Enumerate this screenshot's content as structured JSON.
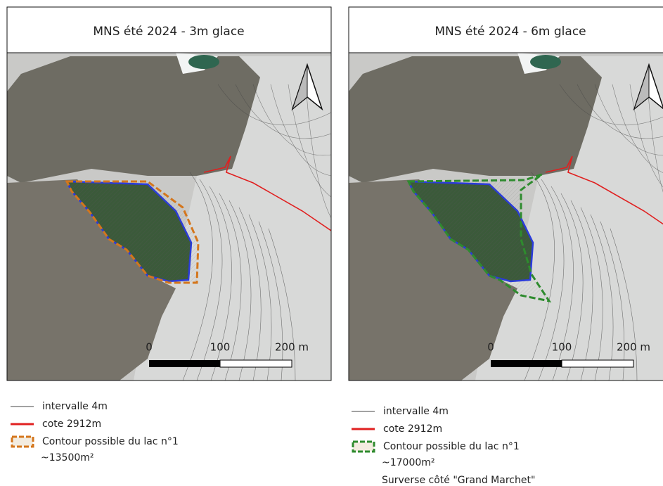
{
  "panels": [
    {
      "title": "MNS été 2024 - 3m glace",
      "contour_color": "#d4761c",
      "scale": [
        "0",
        "100",
        "200 m"
      ],
      "legend": [
        "intervalle 4m",
        "cote 2912m",
        "Contour possible du lac n°1",
        "~13500m²"
      ]
    },
    {
      "title": "MNS été 2024 - 6m glace",
      "contour_color": "#2e8b2e",
      "scale": [
        "0",
        "100",
        "200 m"
      ],
      "legend": [
        "intervalle 4m",
        "cote 2912m",
        "Contour possible du lac n°1",
        "~17000m²",
        "Surverse côté \"Grand Marchet\""
      ]
    }
  ]
}
